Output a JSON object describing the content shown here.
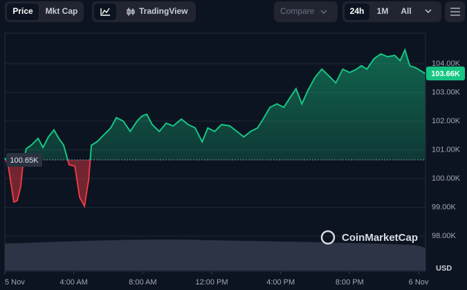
{
  "toolbar": {
    "buttons": [
      "Price",
      "Mkt Cap",
      "TradingView",
      "Compare",
      "24h",
      "1M",
      "All"
    ]
  },
  "watermark": "CoinMarketCap",
  "chart_data": {
    "type": "line",
    "y_unit": "USD",
    "x": [
      0,
      0.2,
      0.52,
      0.72,
      0.92,
      1.04,
      1.24,
      1.53,
      1.93,
      2.21,
      2.53,
      2.85,
      3.13,
      3.41,
      3.73,
      4.06,
      4.34,
      4.62,
      4.86,
      5.02,
      5.34,
      5.74,
      6.14,
      6.47,
      6.87,
      7.27,
      7.67,
      7.95,
      8.23,
      8.55,
      8.96,
      9.36,
      9.76,
      10.24,
      10.64,
      11.04,
      11.45,
      11.77,
      12.17,
      12.57,
      13.05,
      13.57,
      13.86,
      14.26,
      14.66,
      14.98,
      15.38,
      15.78,
      16.18,
      16.57,
      16.89,
      17.23,
      17.59,
      17.99,
      18.39,
      18.8,
      19.2,
      19.6,
      20.0,
      20.4,
      20.68,
      21.0,
      21.41,
      21.81,
      22.21,
      22.61,
      22.93,
      23.21,
      23.49,
      23.82,
      24.1,
      24.38
    ],
    "series": [
      {
        "name": "Price",
        "color": "#16c784",
        "below_color": "#ea3943",
        "values": [
          100.72,
          100.43,
          99.18,
          99.23,
          99.71,
          100.43,
          101.04,
          101.16,
          101.4,
          101.08,
          101.45,
          101.69,
          101.4,
          101.16,
          100.48,
          100.43,
          99.35,
          99.04,
          99.95,
          101.16,
          101.28,
          101.52,
          101.76,
          102.12,
          102.0,
          101.64,
          102.0,
          102.17,
          102.24,
          101.88,
          101.64,
          101.93,
          101.83,
          102.07,
          101.88,
          101.76,
          101.28,
          101.76,
          101.64,
          101.88,
          101.83,
          101.59,
          101.45,
          101.64,
          101.76,
          102.07,
          102.48,
          102.6,
          102.48,
          102.84,
          103.13,
          102.6,
          103.08,
          103.52,
          103.81,
          103.57,
          103.33,
          103.81,
          103.69,
          103.81,
          103.93,
          103.81,
          104.17,
          104.34,
          104.24,
          104.29,
          104.1,
          104.48,
          103.93,
          103.86,
          103.76,
          103.66
        ]
      }
    ],
    "baseline": {
      "value": 100.65,
      "label": "100.65K"
    },
    "last_price": {
      "value": 103.66,
      "label": "103.66K"
    },
    "xlim": [
      0,
      24.4
    ],
    "xticks": [
      {
        "value": 0,
        "label": "5 Nov"
      },
      {
        "value": 4,
        "label": "4:00 AM"
      },
      {
        "value": 8,
        "label": "8:00 AM"
      },
      {
        "value": 12,
        "label": "12:00 PM"
      },
      {
        "value": 16,
        "label": "4:00 PM"
      },
      {
        "value": 20,
        "label": "8:00 PM"
      },
      {
        "value": 24,
        "label": "6 Nov"
      }
    ],
    "ylim": [
      96.77,
      105.06
    ],
    "yticks": [
      {
        "value": 98,
        "label": "98.00K"
      },
      {
        "value": 99,
        "label": "99.00K"
      },
      {
        "value": 100,
        "label": "100.00K"
      },
      {
        "value": 101,
        "label": "101.00K"
      },
      {
        "value": 102,
        "label": "102.00K"
      },
      {
        "value": 103,
        "label": "103.00K"
      },
      {
        "value": 104,
        "label": "104.00K"
      }
    ],
    "grid": true
  }
}
